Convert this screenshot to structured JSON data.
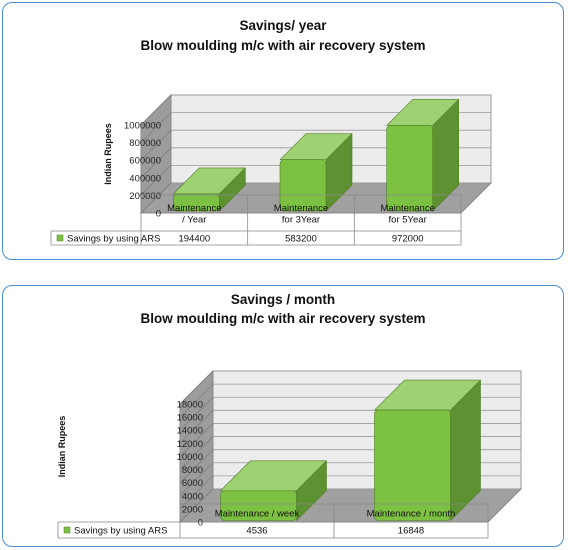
{
  "chart_data": [
    {
      "type": "bar",
      "title": "Savings/ year",
      "subtitle": "Blow moulding m/c with air recovery system",
      "ylabel": "Indian Rupees",
      "categories": [
        "Maintenance / Year",
        "Maintenance for 3Year",
        "Maintenance for 5Year"
      ],
      "category_lines": [
        [
          "Maintenance",
          "/ Year"
        ],
        [
          "Maintenance",
          "for 3Year"
        ],
        [
          "Maintenance",
          "for 5Year"
        ]
      ],
      "series": [
        {
          "name": "Savings by using ARS",
          "values": [
            194400,
            583200,
            972000
          ]
        }
      ],
      "value_labels": [
        "194400",
        "583200",
        "972000"
      ],
      "ylim": [
        0,
        1000000
      ],
      "yticks": [
        0,
        200000,
        400000,
        600000,
        800000,
        1000000
      ],
      "grid": true,
      "style": "3d",
      "bar_color": "#7dc142",
      "legend": "data-table"
    },
    {
      "type": "bar",
      "title": "Savings / month",
      "subtitle": "Blow moulding m/c with air recovery system",
      "ylabel": "Indian Rupees",
      "categories": [
        "Maintenance / week",
        "Maintenance / month"
      ],
      "category_lines": [
        [
          "Maintenance / week"
        ],
        [
          "Maintenance / month"
        ]
      ],
      "series": [
        {
          "name": "Savings by using ARS",
          "values": [
            4536,
            16848
          ]
        }
      ],
      "value_labels": [
        "4536",
        "16848"
      ],
      "ylim": [
        0,
        18000
      ],
      "yticks": [
        0,
        2000,
        4000,
        6000,
        8000,
        10000,
        12000,
        14000,
        16000,
        18000
      ],
      "grid": true,
      "style": "3d",
      "bar_color": "#7dc142",
      "legend": "data-table"
    }
  ]
}
